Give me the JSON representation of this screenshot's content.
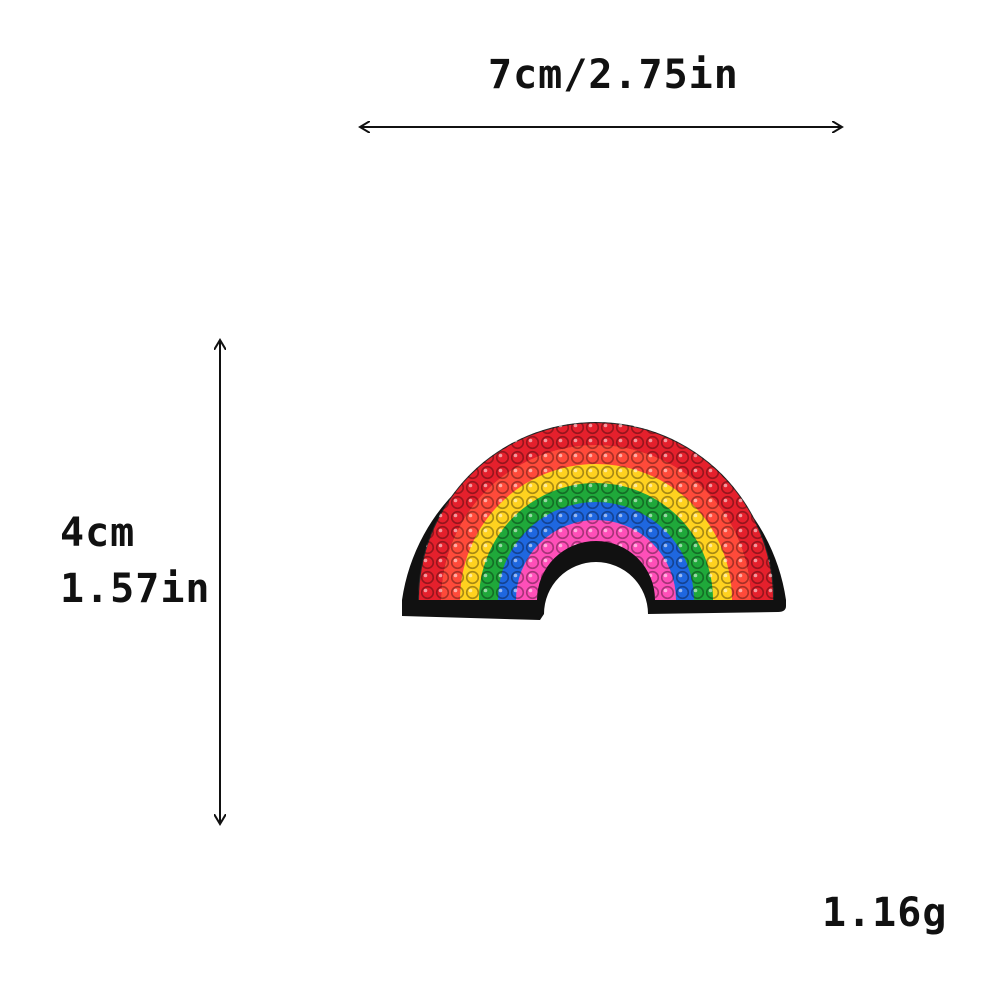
{
  "dimensions": {
    "width_label": "7cm/2.75in",
    "height_label_cm": "4cm",
    "height_label_in": "1.57in",
    "weight_label": "1.16g"
  },
  "product": {
    "icon": "rainbow-sequin-patch-icon",
    "band_colors": [
      "#e5202c",
      "#ff6a1a",
      "#ffd21f",
      "#1fa83a",
      "#1e67e0",
      "#ff4fb8"
    ],
    "border_color": "#111111"
  }
}
